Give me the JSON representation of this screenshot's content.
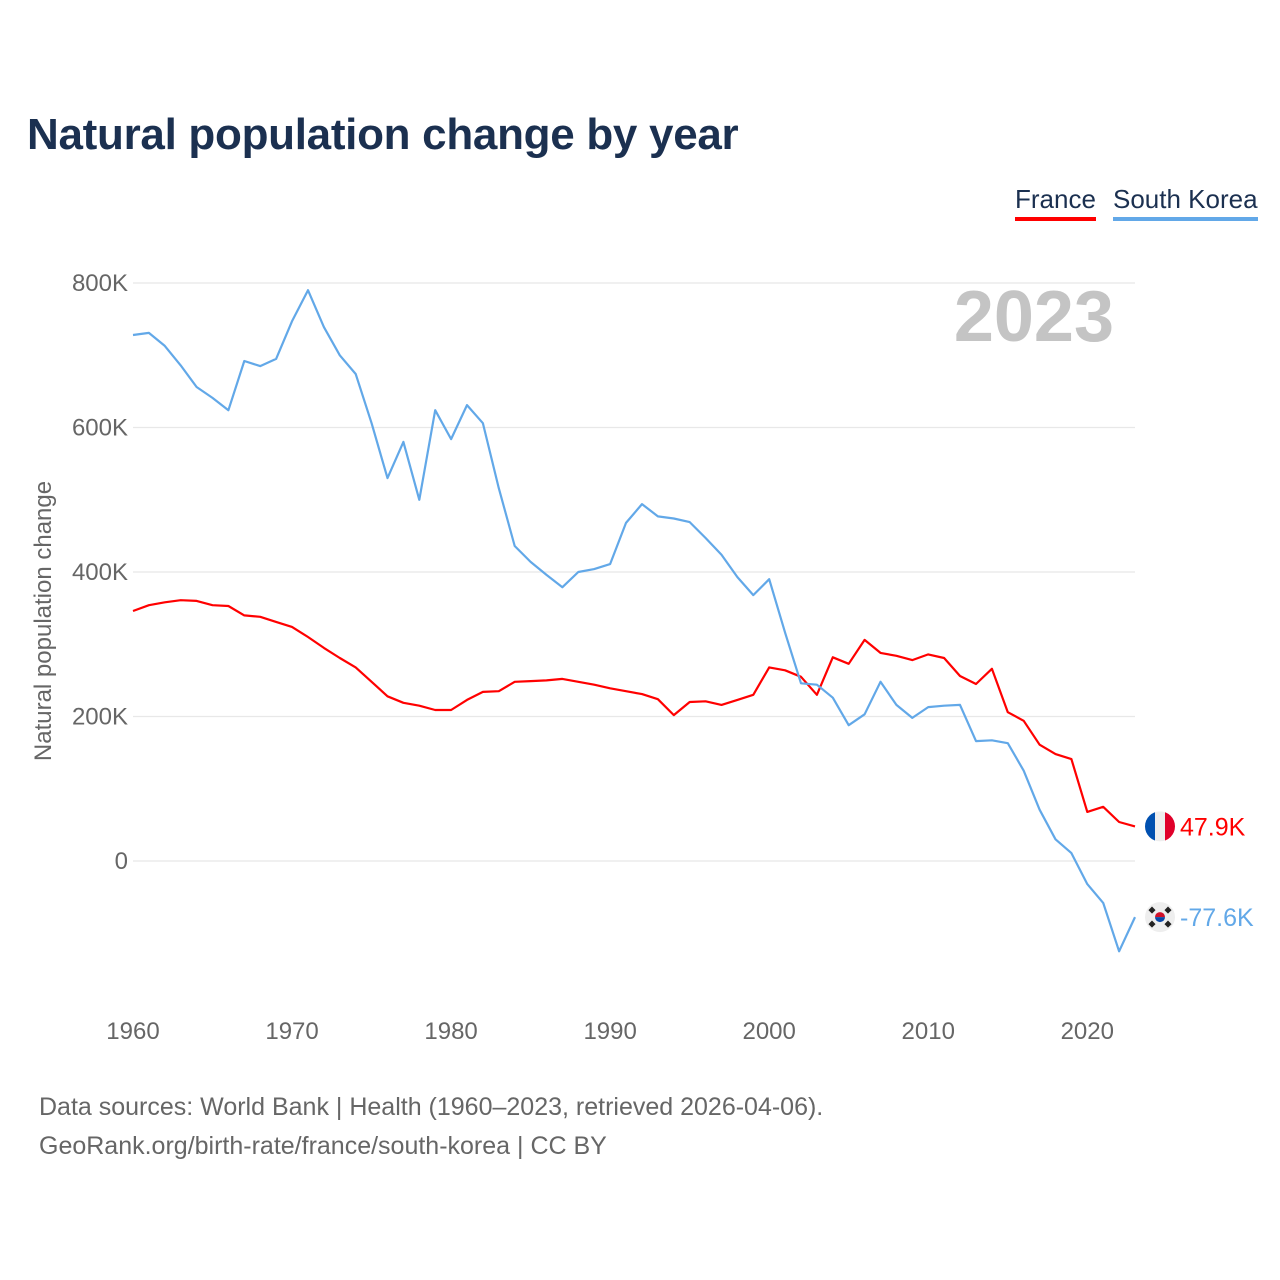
{
  "chart_data": {
    "type": "line",
    "title": "Natural population change by year",
    "xlabel": "",
    "ylabel": "Natural population change",
    "xlim": [
      1960,
      2023
    ],
    "ylim": [
      -200000,
      800000
    ],
    "x_ticks": [
      1960,
      1970,
      1980,
      1990,
      2000,
      2010,
      2020
    ],
    "y_ticks": [
      0,
      200000,
      400000,
      600000,
      800000
    ],
    "y_tick_labels": [
      "0",
      "200K",
      "400K",
      "600K",
      "800K"
    ],
    "grid": true,
    "legend_position": "top-right",
    "year_annotation": "2023",
    "x": [
      1960,
      1961,
      1962,
      1963,
      1964,
      1965,
      1966,
      1967,
      1968,
      1969,
      1970,
      1971,
      1972,
      1973,
      1974,
      1975,
      1976,
      1977,
      1978,
      1979,
      1980,
      1981,
      1982,
      1983,
      1984,
      1985,
      1986,
      1987,
      1988,
      1989,
      1990,
      1991,
      1992,
      1993,
      1994,
      1995,
      1996,
      1997,
      1998,
      1999,
      2000,
      2001,
      2002,
      2003,
      2004,
      2005,
      2006,
      2007,
      2008,
      2009,
      2010,
      2011,
      2012,
      2013,
      2014,
      2015,
      2016,
      2017,
      2018,
      2019,
      2020,
      2021,
      2022,
      2023
    ],
    "series": [
      {
        "name": "France",
        "color": "#ff0000",
        "end_label": "47.9K",
        "flag": "france-flag",
        "values": [
          346000,
          354000,
          358000,
          361000,
          360000,
          354000,
          353000,
          340000,
          338000,
          331000,
          324000,
          310000,
          295000,
          281000,
          268000,
          248000,
          228000,
          219000,
          215000,
          209000,
          209000,
          223000,
          234000,
          235000,
          248000,
          249000,
          250000,
          252000,
          248000,
          244000,
          239000,
          235000,
          231000,
          224000,
          202000,
          220000,
          221000,
          216000,
          223000,
          230000,
          268000,
          264000,
          255000,
          230000,
          282000,
          273000,
          306000,
          288000,
          284000,
          278000,
          286000,
          281000,
          256000,
          245000,
          266000,
          206000,
          194000,
          161000,
          148000,
          141000,
          68000,
          75000,
          54000,
          47900
        ]
      },
      {
        "name": "South Korea",
        "color": "#62a8e8",
        "end_label": "-77.6K",
        "flag": "south-korea-flag",
        "values": [
          728000,
          731000,
          713000,
          686000,
          656000,
          641000,
          624000,
          692000,
          685000,
          695000,
          747000,
          790000,
          739000,
          700000,
          674000,
          606000,
          530000,
          580000,
          500000,
          624000,
          584000,
          631000,
          606000,
          516000,
          436000,
          414000,
          396000,
          379000,
          400000,
          404000,
          411000,
          468000,
          494000,
          477000,
          474000,
          469000,
          447000,
          424000,
          393000,
          368000,
          390000,
          316000,
          246000,
          244000,
          226000,
          188000,
          203000,
          248000,
          216000,
          198000,
          213000,
          215000,
          216000,
          166000,
          167000,
          163000,
          125000,
          71000,
          30000,
          11000,
          -32000,
          -58000,
          -125000,
          -77600
        ]
      }
    ]
  },
  "footer": {
    "line1": "Data sources: World Bank | Health (1960–2023, retrieved 2026-04-06).",
    "line2": "GeoRank.org/birth-rate/france/south-korea | CC BY"
  }
}
